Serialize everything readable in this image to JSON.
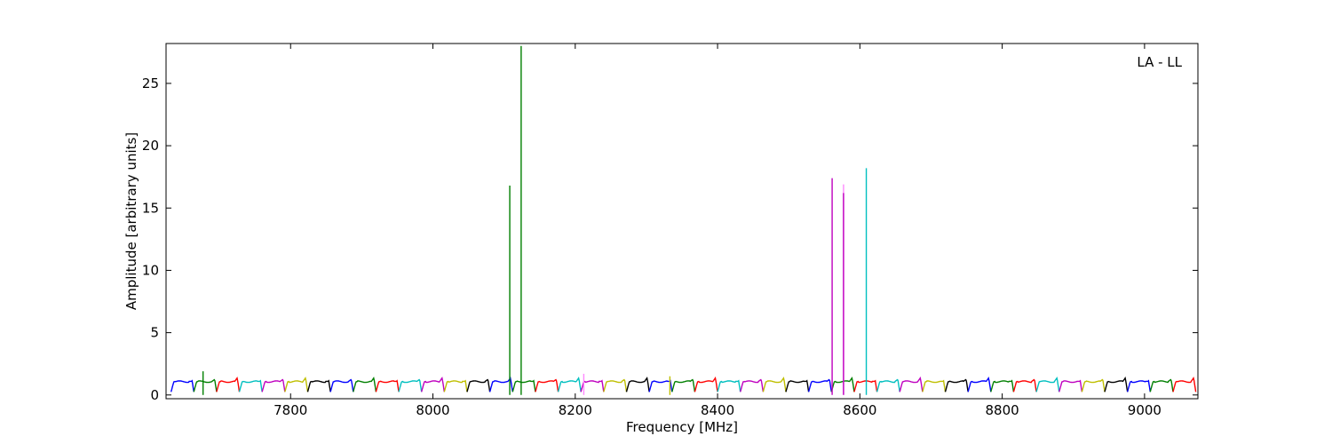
{
  "chart_data": {
    "type": "line",
    "title": "",
    "xlabel": "Frequency [MHz]",
    "ylabel": "Amplitude [arbitrary units]",
    "xlim": [
      7625,
      9075
    ],
    "ylim": [
      -0.3,
      28.2
    ],
    "x_ticks": [
      7800,
      8000,
      8200,
      8400,
      8600,
      8800,
      9000
    ],
    "y_ticks": [
      0,
      5,
      10,
      15,
      20,
      25
    ],
    "annotation": "LA - LL",
    "annotation_position": "top-right",
    "grid": false,
    "channel_width_mhz": 32,
    "channel_start_mhz": 7632,
    "channel_count": 45,
    "channel_colors": [
      "#0000ff",
      "#007f00",
      "#ff0000",
      "#00bfbf",
      "#bf00bf",
      "#bfbf00",
      "#000000"
    ],
    "spikes": [
      {
        "x": 7677,
        "y": 1.9,
        "color": "#007f00"
      },
      {
        "x": 8108,
        "y": 16.8,
        "color": "#007f00"
      },
      {
        "x": 8124,
        "y": 28.0,
        "color": "#007f00"
      },
      {
        "x": 8212,
        "y": 1.7,
        "color": "#ff88ff"
      },
      {
        "x": 8333,
        "y": 1.5,
        "color": "#bfbf00"
      },
      {
        "x": 8561,
        "y": 17.4,
        "color": "#bf00bf"
      },
      {
        "x": 8577,
        "y": 16.9,
        "color": "#ff88ff"
      },
      {
        "x": 8577,
        "y": 16.2,
        "color": "#bf00bf"
      },
      {
        "x": 8609,
        "y": 18.2,
        "color": "#00bfbf"
      }
    ]
  }
}
